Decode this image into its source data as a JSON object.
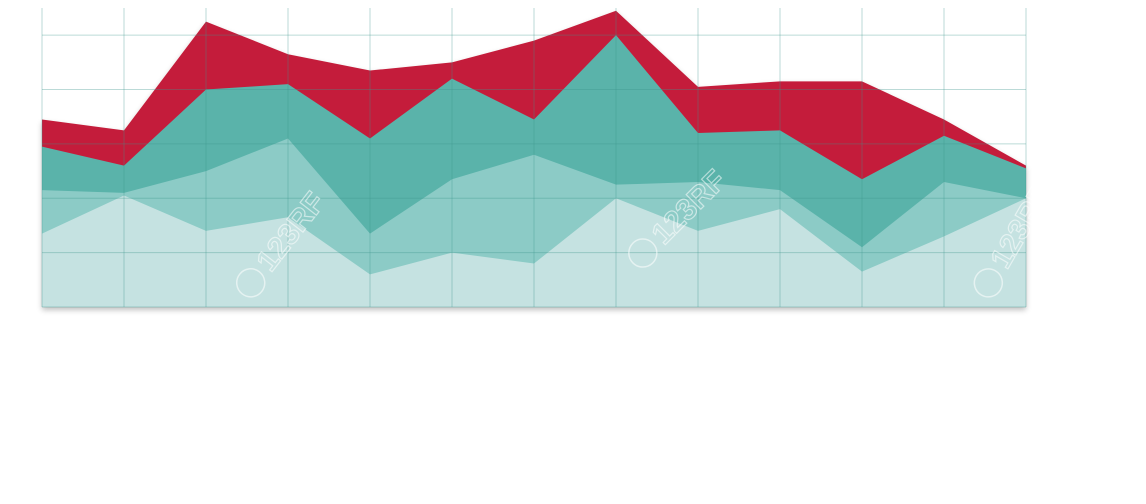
{
  "watermark": {
    "text": "123RF",
    "stroke": "rgba(255,255,255,0.55)"
  },
  "chart_data": {
    "type": "area",
    "stacked": true,
    "grid": true,
    "legend": "none",
    "title": "",
    "xlabel": "",
    "ylabel": "",
    "x": [
      0,
      1,
      2,
      3,
      4,
      5,
      6,
      7,
      8,
      9,
      10,
      11,
      12
    ],
    "ylim": [
      0,
      11
    ],
    "series": [
      {
        "name": "",
        "color": "#c5e2e1",
        "values": [
          2.7,
          4.1,
          2.8,
          3.3,
          1.2,
          2.0,
          1.6,
          4.0,
          2.8,
          3.6,
          1.3,
          2.6,
          4.0
        ]
      },
      {
        "name": "",
        "color": "#8ccbc6",
        "values": [
          1.6,
          0.1,
          2.2,
          2.9,
          1.5,
          2.7,
          4.0,
          0.5,
          1.8,
          0.7,
          0.9,
          2.0,
          0.0
        ]
      },
      {
        "name": "",
        "color": "#5ab3aa",
        "values": [
          1.6,
          1.0,
          3.0,
          2.0,
          3.5,
          3.7,
          1.3,
          5.5,
          1.8,
          2.2,
          2.5,
          1.7,
          1.1
        ]
      },
      {
        "name": "",
        "color": "#c41e3a",
        "values": [
          1.0,
          1.3,
          2.5,
          1.1,
          2.5,
          0.6,
          2.9,
          0.9,
          1.7,
          1.8,
          3.6,
          0.6,
          0.1
        ]
      }
    ]
  }
}
